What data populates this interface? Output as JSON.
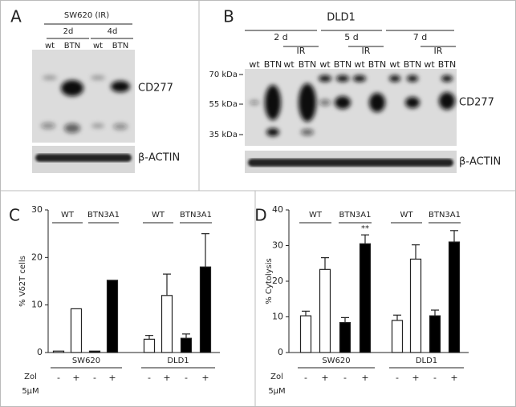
{
  "blots": [
    {
      "panel": "A",
      "cell_line": "SW620 (IR)",
      "timepoints": [
        "2d",
        "4d"
      ],
      "lanes": [
        "wt",
        "BTN",
        "wt",
        "BTN"
      ],
      "bands": [
        "CD277",
        "β-ACTIN"
      ]
    },
    {
      "panel": "B",
      "cell_line": "DLD1",
      "timepoints": [
        "2 d",
        "5 d",
        "7 d"
      ],
      "treatment": [
        "IR",
        "IR",
        "IR"
      ],
      "lanes": [
        "wt",
        "BTN",
        "wt",
        "BTN",
        "wt",
        "BTN",
        "wt",
        "BTN",
        "wt",
        "BTN",
        "wt",
        "BTN"
      ],
      "markers": [
        "70 kDa",
        "55 kDa",
        "35 kDa"
      ],
      "bands": [
        "CD277",
        "β-ACTIN"
      ]
    }
  ],
  "chart_data": [
    {
      "type": "bar",
      "panel": "C",
      "ylabel": "% Vδ2T cells",
      "ylim": [
        0,
        30
      ],
      "yticks": [
        0,
        10,
        20,
        30
      ],
      "categories": [
        "-",
        "+",
        "-",
        "+",
        "-",
        "+",
        "-",
        "+"
      ],
      "values": [
        0.3,
        9.2,
        0.3,
        15.2,
        2.8,
        12,
        3,
        18
      ],
      "errors": [
        null,
        null,
        null,
        null,
        0.8,
        4.5,
        0.9,
        7
      ],
      "colors": [
        "#ffffff",
        "#ffffff",
        "#000000",
        "#000000",
        "#ffffff",
        "#ffffff",
        "#000000",
        "#000000"
      ],
      "conditions": [
        "WT",
        "BTN3A1",
        "WT",
        "BTN3A1"
      ],
      "cell_lines": [
        "SW620",
        "DLD1"
      ],
      "treatment_label": "Zol",
      "dose_label": "5µM"
    },
    {
      "type": "bar",
      "panel": "D",
      "ylabel": "% Cytolysis",
      "ylim": [
        0,
        40
      ],
      "yticks": [
        0,
        10,
        20,
        30,
        40
      ],
      "categories": [
        "-",
        "+",
        "-",
        "+",
        "-",
        "+",
        "-",
        "+"
      ],
      "values": [
        10.3,
        23.3,
        8.4,
        30.5,
        9,
        26.2,
        10.3,
        31
      ],
      "errors": [
        1.3,
        3.3,
        1.4,
        2.5,
        1.5,
        4,
        1.6,
        3.2
      ],
      "colors": [
        "#ffffff",
        "#ffffff",
        "#000000",
        "#000000",
        "#ffffff",
        "#ffffff",
        "#000000",
        "#000000"
      ],
      "conditions": [
        "WT",
        "BTN3A1",
        "WT",
        "BTN3A1"
      ],
      "cell_lines": [
        "SW620",
        "DLD1"
      ],
      "treatment_label": "Zol",
      "dose_label": "5µM",
      "annotation": "**"
    }
  ]
}
